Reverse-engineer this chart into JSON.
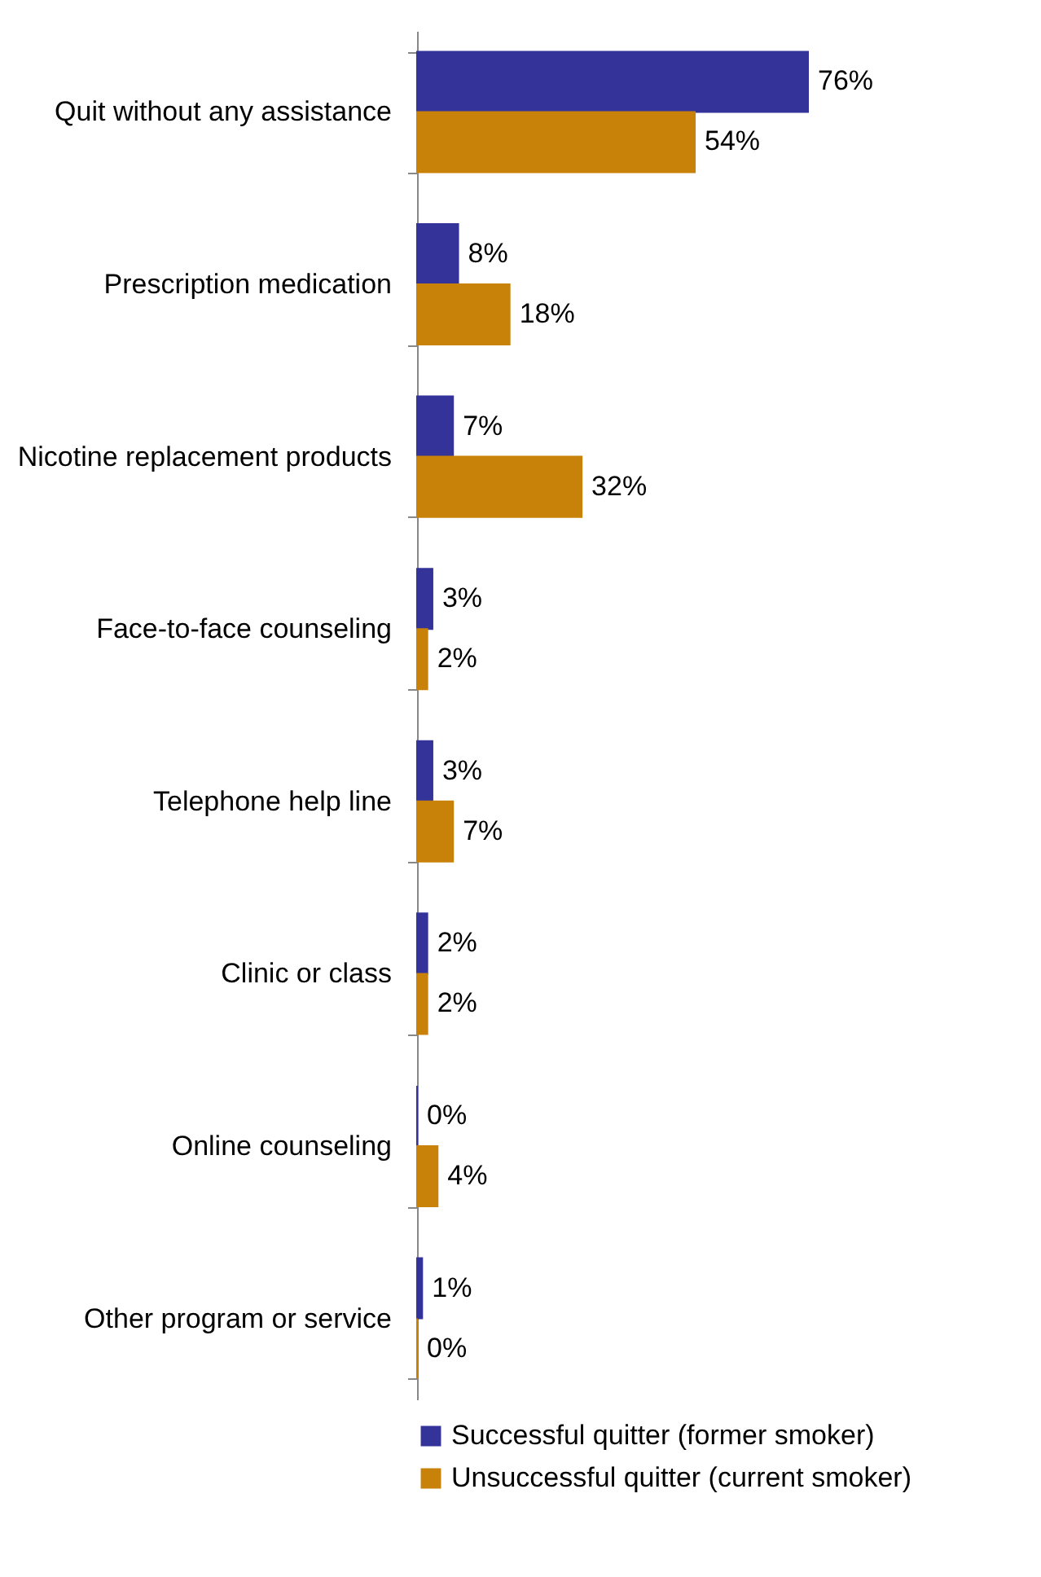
{
  "chart_data": {
    "type": "bar",
    "orientation": "horizontal",
    "categories": [
      "Quit without any assistance",
      "Prescription medication",
      "Nicotine replacement products",
      "Face-to-face counseling",
      "Telephone help line",
      "Clinic or class",
      "Online counseling",
      "Other program or service"
    ],
    "series": [
      {
        "name": "Successful quitter (former smoker)",
        "color": "#333399",
        "values": [
          76,
          8,
          7,
          3,
          3,
          2,
          0,
          1
        ],
        "value_labels": [
          "76%",
          "8%",
          "7%",
          "3%",
          "3%",
          "2%",
          "0%",
          "1%"
        ]
      },
      {
        "name": "Unsuccessful quitter (current smoker)",
        "color": "#c8820a",
        "values": [
          54,
          18,
          32,
          2,
          7,
          2,
          4,
          0
        ],
        "value_labels": [
          "54%",
          "18%",
          "32%",
          "2%",
          "7%",
          "2%",
          "4%",
          "0%"
        ]
      }
    ],
    "legend": "bottom"
  }
}
